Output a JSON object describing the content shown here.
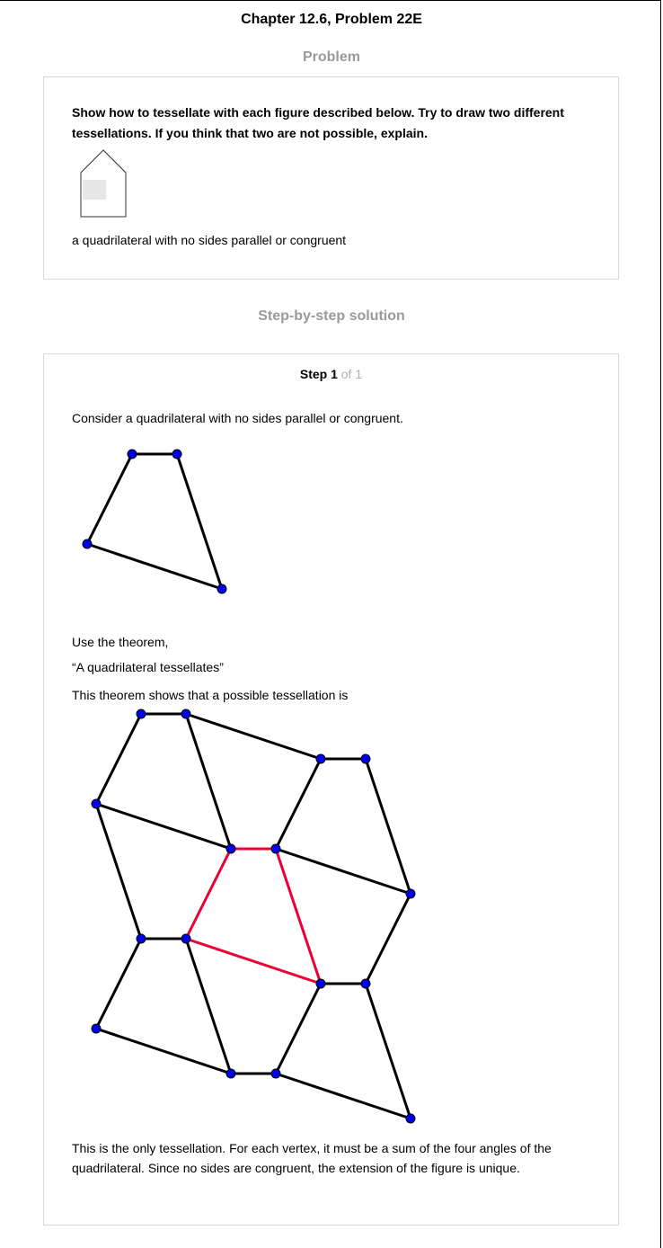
{
  "header": {
    "chapter_title": "Chapter 12.6, Problem 22E",
    "problem_heading": "Problem",
    "solution_heading": "Step-by-step solution"
  },
  "problem": {
    "text": "Show how to tessellate with each figure described below. Try to draw two different tessellations. If you think that two are not possible, explain.",
    "caption": "a quadrilateral with no sides parallel or congruent"
  },
  "solution": {
    "step_label": "Step 1",
    "step_of": "of 1",
    "intro": "Consider a quadrilateral with no sides parallel or congruent.",
    "use_theorem": "Use the theorem,",
    "theorem": "“A quadrilateral tessellates”",
    "shows": "This theorem shows that a possible tessellation is",
    "conclusion": "This is the only tessellation. For each vertex, it must be a sum of the four angles of the quadrilateral. Since no sides are congruent, the extension of the figure is unique."
  },
  "colors": {
    "edge": "#000000",
    "highlight": "#ee0033",
    "vertex": "#0000ee",
    "muted_heading": "#9a9a9a",
    "border": "#d9d9d9"
  }
}
